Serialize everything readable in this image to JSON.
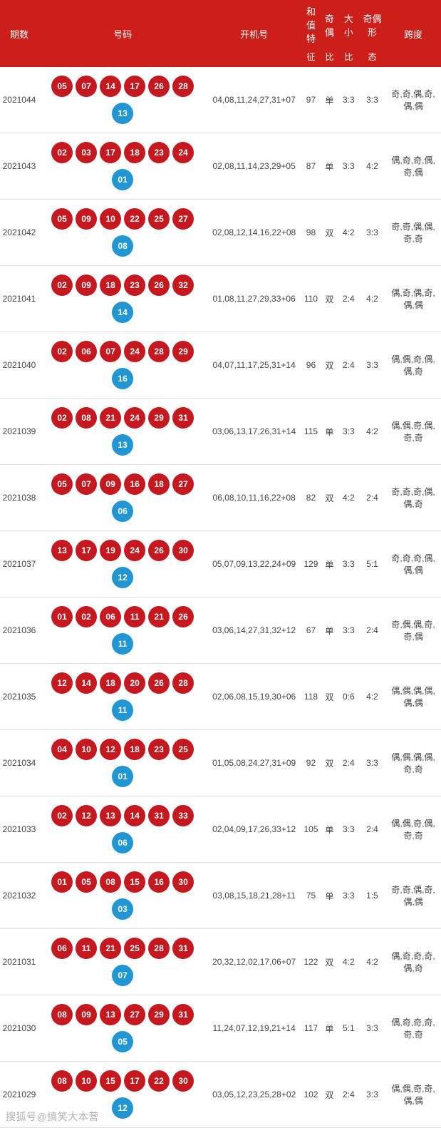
{
  "theme": {
    "header_bg": "#cc1f1a",
    "header_text": "#ffffff",
    "red_ball": "#c5181f",
    "blue_ball": "#2196d3",
    "row_border": "#e0e0e0",
    "body_text": "#444444"
  },
  "headers": {
    "issue": "期数",
    "numbers": "号码",
    "start": "开机号",
    "sum_top": "和值特",
    "sum_sub": "征",
    "oe_top": "奇偶",
    "oe_sub": "比",
    "size_top": "大小",
    "size_sub": "比",
    "pattern_top": "奇偶形",
    "pattern_sub": "态",
    "span": "跨度"
  },
  "rows": [
    {
      "issue": "2021044",
      "red": [
        "05",
        "07",
        "14",
        "17",
        "26",
        "28"
      ],
      "blue": "13",
      "start": "04,08,11,24,27,31+07",
      "sum": "97",
      "oe": "单",
      "ratio": "3:3",
      "size": "3:3",
      "pattern": "奇,奇,偶,奇,偶,偶"
    },
    {
      "issue": "2021043",
      "red": [
        "02",
        "03",
        "17",
        "18",
        "23",
        "24"
      ],
      "blue": "01",
      "start": "02,08,11,14,23,29+05",
      "sum": "87",
      "oe": "单",
      "ratio": "3:3",
      "size": "4:2",
      "pattern": "偶,奇,奇,偶,奇,偶"
    },
    {
      "issue": "2021042",
      "red": [
        "05",
        "09",
        "10",
        "22",
        "25",
        "27"
      ],
      "blue": "08",
      "start": "02,08,12,14,16,22+08",
      "sum": "98",
      "oe": "双",
      "ratio": "4:2",
      "size": "3:3",
      "pattern": "奇,奇,偶,偶,奇,奇"
    },
    {
      "issue": "2021041",
      "red": [
        "02",
        "09",
        "18",
        "23",
        "26",
        "32"
      ],
      "blue": "14",
      "start": "01,08,11,27,29,33+06",
      "sum": "110",
      "oe": "双",
      "ratio": "2:4",
      "size": "4:2",
      "pattern": "偶,奇,偶,奇,偶,偶"
    },
    {
      "issue": "2021040",
      "red": [
        "02",
        "06",
        "07",
        "24",
        "28",
        "29"
      ],
      "blue": "16",
      "start": "04,07,11,17,25,31+14",
      "sum": "96",
      "oe": "双",
      "ratio": "2:4",
      "size": "3:3",
      "pattern": "偶,偶,奇,偶,偶,奇"
    },
    {
      "issue": "2021039",
      "red": [
        "02",
        "08",
        "21",
        "24",
        "29",
        "31"
      ],
      "blue": "13",
      "start": "03,06,13,17,26,31+14",
      "sum": "115",
      "oe": "单",
      "ratio": "3:3",
      "size": "4:2",
      "pattern": "偶,偶,奇,偶,奇,奇"
    },
    {
      "issue": "2021038",
      "red": [
        "05",
        "07",
        "09",
        "16",
        "18",
        "27"
      ],
      "blue": "06",
      "start": "06,08,10,11,16,22+08",
      "sum": "82",
      "oe": "双",
      "ratio": "4:2",
      "size": "2:4",
      "pattern": "奇,奇,奇,偶,偶,奇"
    },
    {
      "issue": "2021037",
      "red": [
        "13",
        "17",
        "19",
        "24",
        "26",
        "30"
      ],
      "blue": "12",
      "start": "05,07,09,13,22,24+09",
      "sum": "129",
      "oe": "单",
      "ratio": "3:3",
      "size": "5:1",
      "pattern": "奇,奇,奇,偶,偶,偶"
    },
    {
      "issue": "2021036",
      "red": [
        "01",
        "02",
        "06",
        "11",
        "21",
        "26"
      ],
      "blue": "11",
      "start": "03,06,14,27,31,32+12",
      "sum": "67",
      "oe": "单",
      "ratio": "3:3",
      "size": "2:4",
      "pattern": "奇,偶,偶,奇,奇,偶"
    },
    {
      "issue": "2021035",
      "red": [
        "12",
        "14",
        "18",
        "20",
        "26",
        "28"
      ],
      "blue": "11",
      "start": "02,06,08,15,19,30+06",
      "sum": "118",
      "oe": "双",
      "ratio": "0:6",
      "size": "4:2",
      "pattern": "偶,偶,偶,偶,偶,偶"
    },
    {
      "issue": "2021034",
      "red": [
        "04",
        "10",
        "12",
        "18",
        "23",
        "25"
      ],
      "blue": "01",
      "start": "01,05,08,24,27,31+09",
      "sum": "92",
      "oe": "双",
      "ratio": "2:4",
      "size": "3:3",
      "pattern": "偶,偶,偶,偶,奇,奇"
    },
    {
      "issue": "2021033",
      "red": [
        "02",
        "12",
        "13",
        "14",
        "31",
        "33"
      ],
      "blue": "06",
      "start": "02,04,09,17,26,33+12",
      "sum": "105",
      "oe": "单",
      "ratio": "3:3",
      "size": "2:4",
      "pattern": "偶,偶,奇,偶,奇,奇"
    },
    {
      "issue": "2021032",
      "red": [
        "01",
        "05",
        "08",
        "15",
        "16",
        "30"
      ],
      "blue": "03",
      "start": "03,08,15,18,21,28+11",
      "sum": "75",
      "oe": "单",
      "ratio": "3:3",
      "size": "1:5",
      "pattern": "奇,奇,偶,奇,偶,偶"
    },
    {
      "issue": "2021031",
      "red": [
        "06",
        "11",
        "21",
        "25",
        "28",
        "31"
      ],
      "blue": "07",
      "start": "20,32,12,02,17,06+07",
      "sum": "122",
      "oe": "双",
      "ratio": "4:2",
      "size": "4:2",
      "pattern": "偶,奇,奇,奇,偶,奇"
    },
    {
      "issue": "2021030",
      "red": [
        "08",
        "09",
        "13",
        "27",
        "29",
        "31"
      ],
      "blue": "05",
      "start": "11,24,07,12,19,21+14",
      "sum": "117",
      "oe": "单",
      "ratio": "5:1",
      "size": "3:3",
      "pattern": "偶,奇,奇,奇,奇,奇"
    },
    {
      "issue": "2021029",
      "red": [
        "08",
        "10",
        "15",
        "17",
        "22",
        "30"
      ],
      "blue": "12",
      "start": "03,05,12,23,25,28+02",
      "sum": "102",
      "oe": "双",
      "ratio": "2:4",
      "size": "3:3",
      "pattern": "偶,偶,奇,奇,偶,偶"
    }
  ],
  "watermark": "搜狐号@搞笑大本营"
}
